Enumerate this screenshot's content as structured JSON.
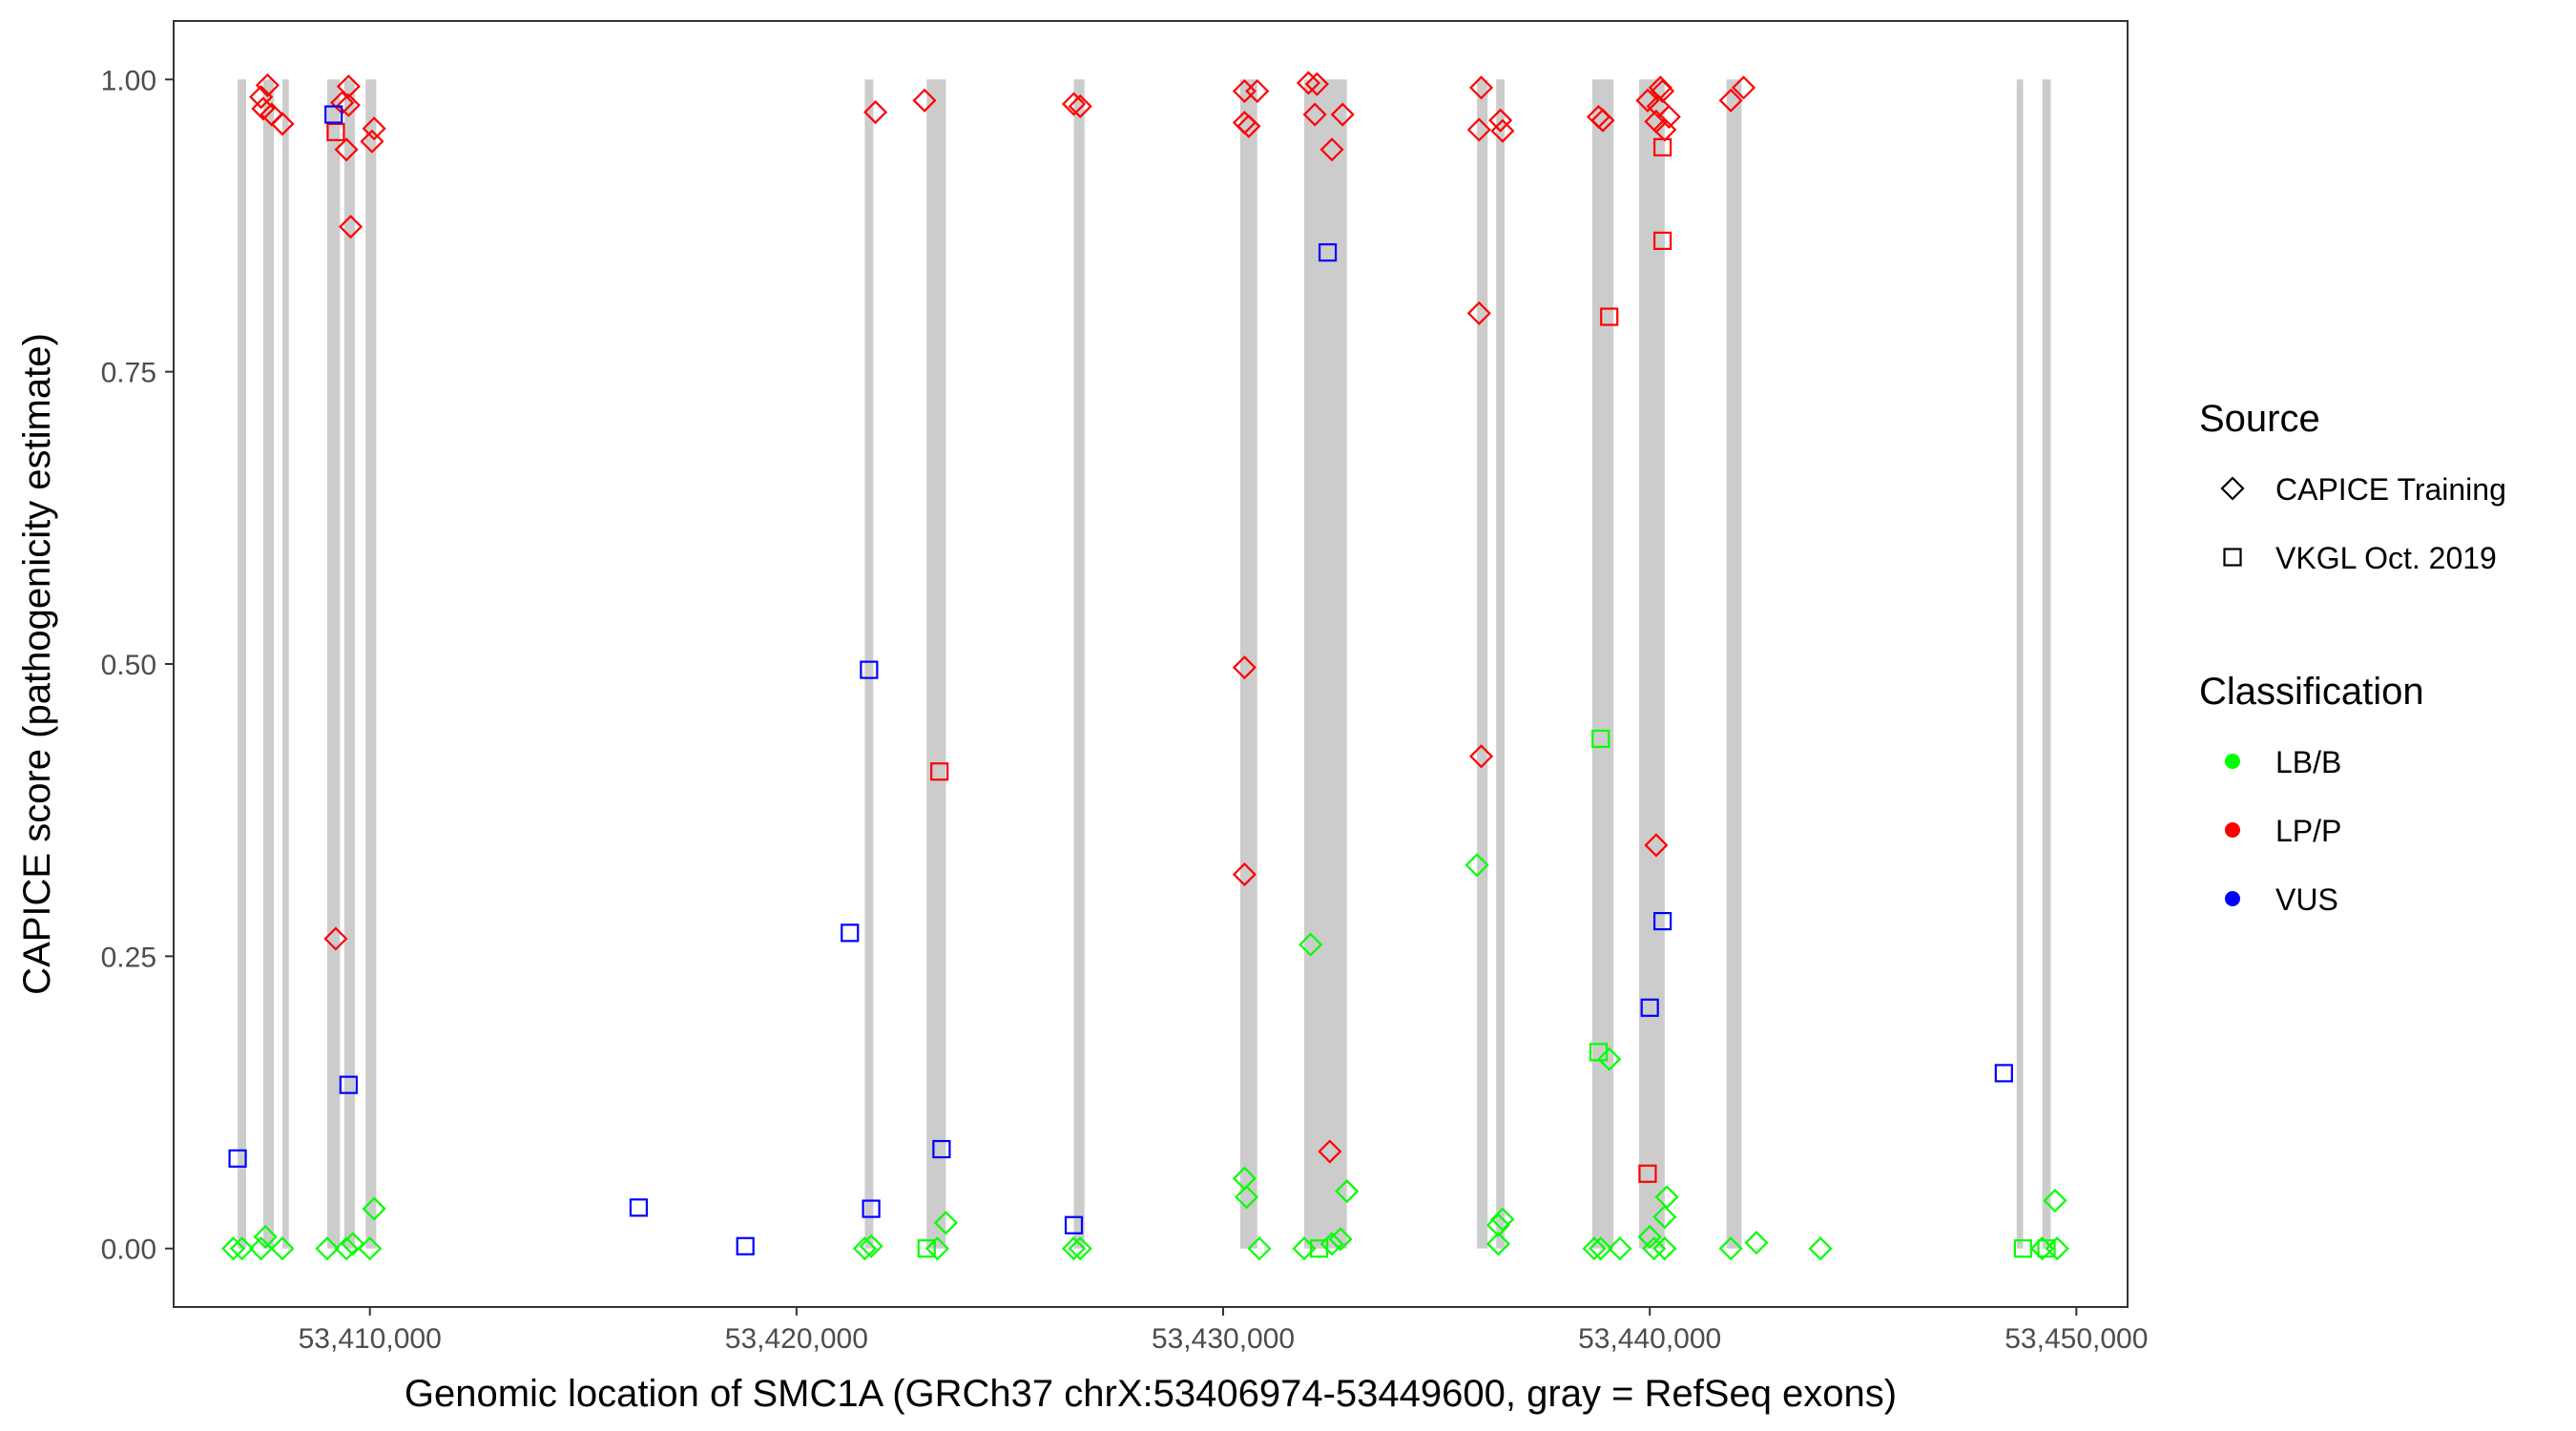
{
  "chart_data": {
    "type": "scatter",
    "title": "",
    "xlabel": "Genomic location of SMC1A (GRCh37 chrX:53406974-53449600, gray = RefSeq exons)",
    "ylabel": "CAPICE score (pathogenicity estimate)",
    "xlim": [
      53405400,
      53451200
    ],
    "ylim": [
      -0.05,
      1.05
    ],
    "x_ticks": [
      53410000,
      53420000,
      53430000,
      53440000,
      53450000
    ],
    "x_tick_labels": [
      "53,410,000",
      "53,420,000",
      "53,430,000",
      "53,440,000",
      "53,450,000"
    ],
    "y_ticks": [
      0,
      0.25,
      0.5,
      0.75,
      1.0
    ],
    "y_tick_labels": [
      "0.00",
      "0.25",
      "0.50",
      "0.75",
      "1.00"
    ],
    "grid": false,
    "exon_color": "#cccccc",
    "exons": [
      [
        53406900,
        53407100
      ],
      [
        53407500,
        53407750
      ],
      [
        53407950,
        53408100
      ],
      [
        53409000,
        53409300
      ],
      [
        53409400,
        53409650
      ],
      [
        53409900,
        53410150
      ],
      [
        53421600,
        53421800
      ],
      [
        53423050,
        53423500
      ],
      [
        53426500,
        53426750
      ],
      [
        53430400,
        53430800
      ],
      [
        53431900,
        53432900
      ],
      [
        53435950,
        53436200
      ],
      [
        53436400,
        53436600
      ],
      [
        53438650,
        53439150
      ],
      [
        53439750,
        53440350
      ],
      [
        53441800,
        53442150
      ],
      [
        53448600,
        53448750
      ],
      [
        53449200,
        53449400
      ]
    ],
    "legends": [
      {
        "title": "Source",
        "items": [
          {
            "label": "CAPICE Training",
            "shape": "diamond"
          },
          {
            "label": "VKGL Oct. 2019",
            "shape": "square"
          }
        ]
      },
      {
        "title": "Classification",
        "items": [
          {
            "label": "LB/B",
            "color": "#00ff00"
          },
          {
            "label": "LP/P",
            "color": "#ff0000"
          },
          {
            "label": "VUS",
            "color": "#0000ff"
          }
        ]
      }
    ],
    "legend_position": "right",
    "series": [
      {
        "name": "LP/P",
        "color": "#ff0000",
        "points": [
          {
            "x": 53407600,
            "y": 0.995,
            "shape": "diamond"
          },
          {
            "x": 53407450,
            "y": 0.985,
            "shape": "diamond"
          },
          {
            "x": 53407500,
            "y": 0.975,
            "shape": "diamond"
          },
          {
            "x": 53407700,
            "y": 0.97,
            "shape": "diamond"
          },
          {
            "x": 53407950,
            "y": 0.962,
            "shape": "diamond"
          },
          {
            "x": 53409500,
            "y": 0.994,
            "shape": "diamond"
          },
          {
            "x": 53409350,
            "y": 0.98,
            "shape": "diamond"
          },
          {
            "x": 53409500,
            "y": 0.978,
            "shape": "diamond"
          },
          {
            "x": 53409200,
            "y": 0.955,
            "shape": "square"
          },
          {
            "x": 53409450,
            "y": 0.94,
            "shape": "diamond"
          },
          {
            "x": 53410100,
            "y": 0.958,
            "shape": "diamond"
          },
          {
            "x": 53410050,
            "y": 0.947,
            "shape": "diamond"
          },
          {
            "x": 53409550,
            "y": 0.874,
            "shape": "diamond"
          },
          {
            "x": 53409200,
            "y": 0.265,
            "shape": "diamond"
          },
          {
            "x": 53421850,
            "y": 0.972,
            "shape": "diamond"
          },
          {
            "x": 53423000,
            "y": 0.982,
            "shape": "diamond"
          },
          {
            "x": 53423350,
            "y": 0.408,
            "shape": "square"
          },
          {
            "x": 53426500,
            "y": 0.979,
            "shape": "diamond"
          },
          {
            "x": 53426650,
            "y": 0.977,
            "shape": "diamond"
          },
          {
            "x": 53430500,
            "y": 0.99,
            "shape": "diamond"
          },
          {
            "x": 53430800,
            "y": 0.99,
            "shape": "diamond"
          },
          {
            "x": 53430500,
            "y": 0.963,
            "shape": "diamond"
          },
          {
            "x": 53430600,
            "y": 0.96,
            "shape": "diamond"
          },
          {
            "x": 53430500,
            "y": 0.497,
            "shape": "diamond"
          },
          {
            "x": 53430500,
            "y": 0.32,
            "shape": "diamond"
          },
          {
            "x": 53432000,
            "y": 0.997,
            "shape": "diamond"
          },
          {
            "x": 53432200,
            "y": 0.996,
            "shape": "diamond"
          },
          {
            "x": 53432150,
            "y": 0.97,
            "shape": "diamond"
          },
          {
            "x": 53432800,
            "y": 0.97,
            "shape": "diamond"
          },
          {
            "x": 53432550,
            "y": 0.94,
            "shape": "diamond"
          },
          {
            "x": 53432500,
            "y": 0.083,
            "shape": "diamond"
          },
          {
            "x": 53436050,
            "y": 0.993,
            "shape": "diamond"
          },
          {
            "x": 53436000,
            "y": 0.957,
            "shape": "diamond"
          },
          {
            "x": 53436500,
            "y": 0.965,
            "shape": "diamond"
          },
          {
            "x": 53436550,
            "y": 0.956,
            "shape": "diamond"
          },
          {
            "x": 53436000,
            "y": 0.8,
            "shape": "diamond"
          },
          {
            "x": 53436050,
            "y": 0.421,
            "shape": "diamond"
          },
          {
            "x": 53438800,
            "y": 0.968,
            "shape": "diamond"
          },
          {
            "x": 53438900,
            "y": 0.965,
            "shape": "diamond"
          },
          {
            "x": 53439050,
            "y": 0.797,
            "shape": "square"
          },
          {
            "x": 53439950,
            "y": 0.982,
            "shape": "diamond"
          },
          {
            "x": 53440250,
            "y": 0.993,
            "shape": "diamond"
          },
          {
            "x": 53440300,
            "y": 0.99,
            "shape": "diamond"
          },
          {
            "x": 53440200,
            "y": 0.977,
            "shape": "diamond"
          },
          {
            "x": 53440450,
            "y": 0.968,
            "shape": "diamond"
          },
          {
            "x": 53440150,
            "y": 0.964,
            "shape": "diamond"
          },
          {
            "x": 53440350,
            "y": 0.957,
            "shape": "diamond"
          },
          {
            "x": 53440300,
            "y": 0.942,
            "shape": "square"
          },
          {
            "x": 53440300,
            "y": 0.862,
            "shape": "square"
          },
          {
            "x": 53440150,
            "y": 0.345,
            "shape": "diamond"
          },
          {
            "x": 53439950,
            "y": 0.064,
            "shape": "square"
          },
          {
            "x": 53442200,
            "y": 0.993,
            "shape": "diamond"
          },
          {
            "x": 53441900,
            "y": 0.982,
            "shape": "diamond"
          }
        ]
      },
      {
        "name": "VUS",
        "color": "#0000ff",
        "points": [
          {
            "x": 53409150,
            "y": 0.97,
            "shape": "square"
          },
          {
            "x": 53406900,
            "y": 0.077,
            "shape": "square"
          },
          {
            "x": 53409500,
            "y": 0.14,
            "shape": "square"
          },
          {
            "x": 53416300,
            "y": 0.035,
            "shape": "square"
          },
          {
            "x": 53418800,
            "y": 0.002,
            "shape": "square"
          },
          {
            "x": 53421250,
            "y": 0.27,
            "shape": "square"
          },
          {
            "x": 53421700,
            "y": 0.495,
            "shape": "square"
          },
          {
            "x": 53421750,
            "y": 0.034,
            "shape": "square"
          },
          {
            "x": 53423400,
            "y": 0.085,
            "shape": "square"
          },
          {
            "x": 53426500,
            "y": 0.02,
            "shape": "square"
          },
          {
            "x": 53432450,
            "y": 0.852,
            "shape": "square"
          },
          {
            "x": 53440300,
            "y": 0.28,
            "shape": "square"
          },
          {
            "x": 53440000,
            "y": 0.206,
            "shape": "square"
          },
          {
            "x": 53448300,
            "y": 0.15,
            "shape": "square"
          }
        ]
      },
      {
        "name": "LB/B",
        "color": "#00ff00",
        "points": [
          {
            "x": 53406800,
            "y": 0.0,
            "shape": "diamond"
          },
          {
            "x": 53407000,
            "y": 0.0,
            "shape": "diamond"
          },
          {
            "x": 53407450,
            "y": 0.0,
            "shape": "diamond"
          },
          {
            "x": 53407550,
            "y": 0.01,
            "shape": "diamond"
          },
          {
            "x": 53407950,
            "y": 0.0,
            "shape": "diamond"
          },
          {
            "x": 53409000,
            "y": 0.0,
            "shape": "diamond"
          },
          {
            "x": 53409450,
            "y": 0.0,
            "shape": "diamond"
          },
          {
            "x": 53409600,
            "y": 0.004,
            "shape": "diamond"
          },
          {
            "x": 53410000,
            "y": 0.0,
            "shape": "diamond"
          },
          {
            "x": 53410100,
            "y": 0.034,
            "shape": "diamond"
          },
          {
            "x": 53421600,
            "y": 0.0,
            "shape": "diamond"
          },
          {
            "x": 53421750,
            "y": 0.002,
            "shape": "diamond"
          },
          {
            "x": 53423050,
            "y": 0.0,
            "shape": "square"
          },
          {
            "x": 53423300,
            "y": 0.0,
            "shape": "diamond"
          },
          {
            "x": 53423500,
            "y": 0.022,
            "shape": "diamond"
          },
          {
            "x": 53426500,
            "y": 0.0,
            "shape": "diamond"
          },
          {
            "x": 53426650,
            "y": 0.0,
            "shape": "diamond"
          },
          {
            "x": 53430500,
            "y": 0.06,
            "shape": "diamond"
          },
          {
            "x": 53430550,
            "y": 0.044,
            "shape": "diamond"
          },
          {
            "x": 53430850,
            "y": 0.0,
            "shape": "diamond"
          },
          {
            "x": 53431900,
            "y": 0.0,
            "shape": "diamond"
          },
          {
            "x": 53432050,
            "y": 0.26,
            "shape": "diamond"
          },
          {
            "x": 53432250,
            "y": 0.0,
            "shape": "square"
          },
          {
            "x": 53432550,
            "y": 0.004,
            "shape": "diamond"
          },
          {
            "x": 53432750,
            "y": 0.008,
            "shape": "diamond"
          },
          {
            "x": 53432900,
            "y": 0.049,
            "shape": "diamond"
          },
          {
            "x": 53435950,
            "y": 0.328,
            "shape": "diamond"
          },
          {
            "x": 53436450,
            "y": 0.02,
            "shape": "diamond"
          },
          {
            "x": 53436550,
            "y": 0.025,
            "shape": "diamond"
          },
          {
            "x": 53436450,
            "y": 0.004,
            "shape": "diamond"
          },
          {
            "x": 53438850,
            "y": 0.436,
            "shape": "square"
          },
          {
            "x": 53438800,
            "y": 0.168,
            "shape": "square"
          },
          {
            "x": 53439050,
            "y": 0.162,
            "shape": "diamond"
          },
          {
            "x": 53438700,
            "y": 0.0,
            "shape": "diamond"
          },
          {
            "x": 53438850,
            "y": 0.0,
            "shape": "diamond"
          },
          {
            "x": 53439300,
            "y": 0.0,
            "shape": "diamond"
          },
          {
            "x": 53440000,
            "y": 0.01,
            "shape": "diamond"
          },
          {
            "x": 53440100,
            "y": 0.0,
            "shape": "diamond"
          },
          {
            "x": 53440350,
            "y": 0.0,
            "shape": "diamond"
          },
          {
            "x": 53440400,
            "y": 0.044,
            "shape": "diamond"
          },
          {
            "x": 53440350,
            "y": 0.027,
            "shape": "diamond"
          },
          {
            "x": 53441900,
            "y": 0.0,
            "shape": "diamond"
          },
          {
            "x": 53442500,
            "y": 0.005,
            "shape": "diamond"
          },
          {
            "x": 53444000,
            "y": 0.0,
            "shape": "diamond"
          },
          {
            "x": 53448750,
            "y": 0.0,
            "shape": "square"
          },
          {
            "x": 53449200,
            "y": 0.0,
            "shape": "diamond"
          },
          {
            "x": 53449300,
            "y": 0.0,
            "shape": "square"
          },
          {
            "x": 53449550,
            "y": 0.0,
            "shape": "diamond"
          },
          {
            "x": 53449500,
            "y": 0.041,
            "shape": "diamond"
          }
        ]
      }
    ]
  }
}
